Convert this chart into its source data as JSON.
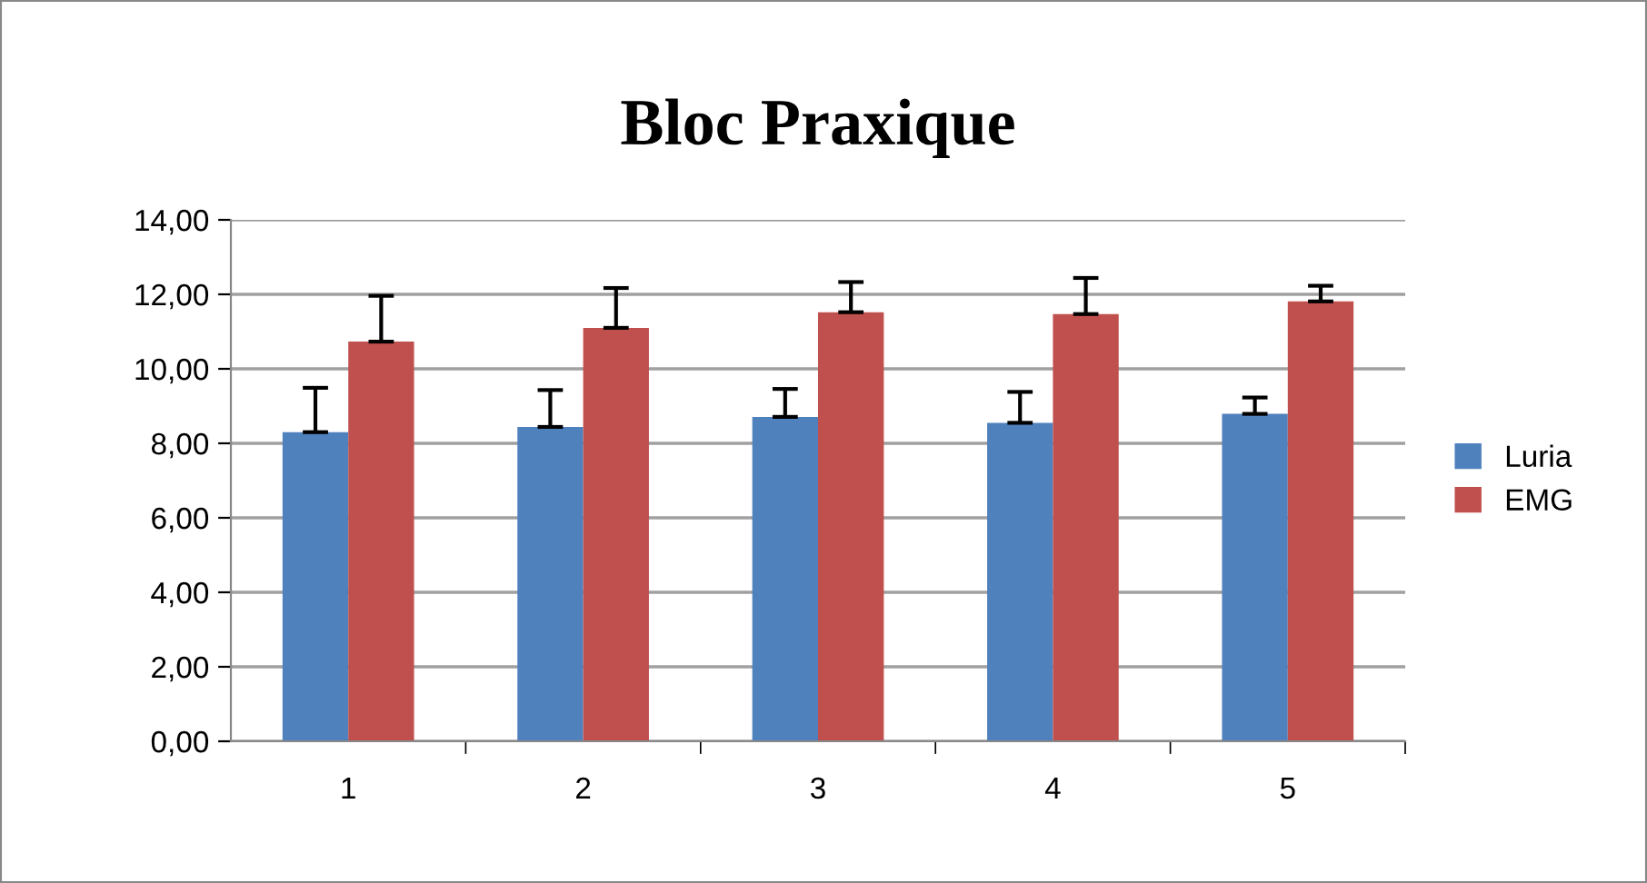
{
  "chart_data": {
    "type": "bar",
    "title": "Bloc Praxique",
    "categories": [
      "1",
      "2",
      "3",
      "4",
      "5"
    ],
    "series": [
      {
        "name": "Luria",
        "color": "#4f81bd",
        "values": [
          8.3,
          8.44,
          8.71,
          8.55,
          8.79
        ],
        "errors": [
          [
            8.3,
            9.49
          ],
          [
            8.44,
            9.43
          ],
          [
            8.71,
            9.46
          ],
          [
            8.55,
            9.38
          ],
          [
            8.79,
            9.23
          ]
        ]
      },
      {
        "name": "EMG",
        "color": "#c0504d",
        "values": [
          10.73,
          11.1,
          11.52,
          11.47,
          11.81
        ],
        "errors": [
          [
            10.73,
            11.96
          ],
          [
            11.1,
            12.17
          ],
          [
            11.52,
            12.33
          ],
          [
            11.47,
            12.44
          ],
          [
            11.81,
            12.23
          ]
        ]
      }
    ],
    "ylim": [
      0,
      14
    ],
    "yticks": [
      {
        "value": 0,
        "label": "0,00"
      },
      {
        "value": 2,
        "label": "2,00"
      },
      {
        "value": 4,
        "label": "4,00"
      },
      {
        "value": 6,
        "label": "6,00"
      },
      {
        "value": 8,
        "label": "8,00"
      },
      {
        "value": 10,
        "label": "10,00"
      },
      {
        "value": 12,
        "label": "12,00"
      },
      {
        "value": 14,
        "label": "14,00"
      }
    ],
    "grid": "y",
    "legend": "right"
  }
}
